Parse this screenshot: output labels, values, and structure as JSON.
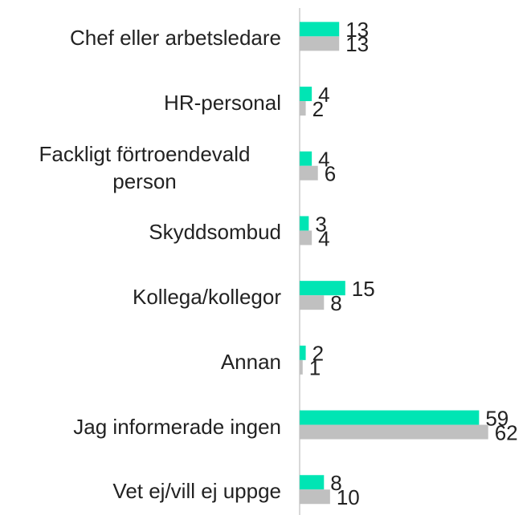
{
  "chart_data": {
    "type": "bar",
    "orientation": "horizontal",
    "categories": [
      "Chef eller arbetsledare",
      "HR-personal",
      "Fackligt förtroendevald person",
      "Skyddsombud",
      "Kollega/kollegor",
      "Annan",
      "Jag informerade ingen",
      "Vet ej/vill ej uppge"
    ],
    "series": [
      {
        "color": "#00e5b4",
        "values": [
          13,
          4,
          4,
          3,
          15,
          2,
          59,
          8
        ]
      },
      {
        "color": "#c0c0c0",
        "values": [
          13,
          2,
          6,
          4,
          8,
          1,
          62,
          10
        ]
      }
    ],
    "xlim": [
      0,
      70
    ]
  }
}
